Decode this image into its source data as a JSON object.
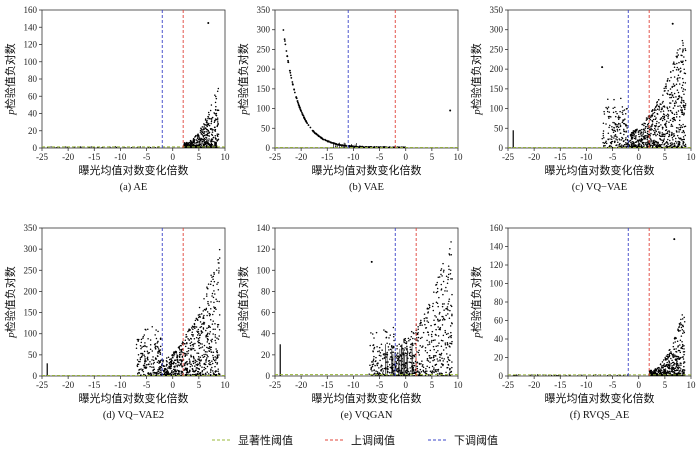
{
  "chart_data": [
    {
      "type": "scatter",
      "title": "",
      "caption": "(a) AE",
      "xlabel": "曝光均值对数变化倍数",
      "ylabel": "p检验值负对数",
      "xlim": [
        -25,
        10
      ],
      "ylim": [
        0,
        160
      ],
      "xticks": [
        -25,
        -20,
        -15,
        -10,
        -5,
        0,
        5,
        10
      ],
      "yticks": [
        0,
        20,
        40,
        60,
        80,
        100,
        120,
        140,
        160
      ],
      "thresholds": {
        "significance_y": 1.3,
        "up_x": 2,
        "down_x": -2
      },
      "shape": "ae",
      "x": [
        6.8
      ],
      "y": [
        145
      ]
    },
    {
      "type": "scatter",
      "title": "",
      "caption": "(b) VAE",
      "xlabel": "曝光均值对数变化倍数",
      "ylabel": "p检验值负对数",
      "xlim": [
        -25,
        10
      ],
      "ylim": [
        0,
        350
      ],
      "xticks": [
        -25,
        -20,
        -15,
        -10,
        -5,
        0,
        5,
        10
      ],
      "yticks": [
        0,
        50,
        100,
        150,
        200,
        250,
        300,
        350
      ],
      "thresholds": {
        "significance_y": 1.3,
        "up_x": -2,
        "down_x": -11
      },
      "shape": "vae",
      "x": [
        8.5
      ],
      "y": [
        95
      ]
    },
    {
      "type": "scatter",
      "title": "",
      "caption": "(c) VQ−VAE",
      "xlabel": "曝光均值对数变化倍数",
      "ylabel": "p检验值负对数",
      "xlim": [
        -25,
        10
      ],
      "ylim": [
        0,
        350
      ],
      "xticks": [
        -25,
        -20,
        -15,
        -10,
        -5,
        0,
        5,
        10
      ],
      "yticks": [
        0,
        50,
        100,
        150,
        200,
        250,
        300,
        350
      ],
      "thresholds": {
        "significance_y": 1.3,
        "up_x": 2,
        "down_x": -2
      },
      "shape": "vq",
      "x": [
        -7,
        6.5
      ],
      "y": [
        205,
        315
      ]
    },
    {
      "type": "scatter",
      "title": "",
      "caption": "(d) VQ−VAE2",
      "xlabel": "曝光均值对数变化倍数",
      "ylabel": "p检验值负对数",
      "xlim": [
        -25,
        10
      ],
      "ylim": [
        0,
        350
      ],
      "xticks": [
        -25,
        -20,
        -15,
        -10,
        -5,
        0,
        5,
        10
      ],
      "yticks": [
        0,
        50,
        100,
        150,
        200,
        250,
        300,
        350
      ],
      "thresholds": {
        "significance_y": 1.3,
        "up_x": 2,
        "down_x": -2
      },
      "shape": "vq2",
      "x": [],
      "y": []
    },
    {
      "type": "scatter",
      "title": "",
      "caption": "(e) VQGAN",
      "xlabel": "曝光均值对数变化倍数",
      "ylabel": "p检验值负对数",
      "xlim": [
        -25,
        10
      ],
      "ylim": [
        0,
        140
      ],
      "xticks": [
        -25,
        -20,
        -15,
        -10,
        -5,
        0,
        5,
        10
      ],
      "yticks": [
        0,
        20,
        40,
        60,
        80,
        100,
        120,
        140
      ],
      "thresholds": {
        "significance_y": 1.3,
        "up_x": 2,
        "down_x": -2
      },
      "shape": "vqgan",
      "x": [
        -6.5
      ],
      "y": [
        108
      ]
    },
    {
      "type": "scatter",
      "title": "",
      "caption": "(f) RVQS_AE",
      "xlabel": "曝光均值对数变化倍数",
      "ylabel": "p检验值负对数",
      "xlim": [
        -25,
        10
      ],
      "ylim": [
        0,
        160
      ],
      "xticks": [
        -25,
        -20,
        -15,
        -10,
        -5,
        0,
        5,
        10
      ],
      "yticks": [
        0,
        20,
        40,
        60,
        80,
        100,
        120,
        140,
        160
      ],
      "thresholds": {
        "significance_y": 1.3,
        "up_x": 2,
        "down_x": -2
      },
      "shape": "ae",
      "x": [
        6.8
      ],
      "y": [
        148
      ]
    }
  ],
  "legend": {
    "placement": "bottom",
    "items": [
      {
        "label": "显著性阈值",
        "color": "#9ab83a"
      },
      {
        "label": "上调阈值",
        "color": "#e0443a"
      },
      {
        "label": "下调阈值",
        "color": "#3a44c8"
      }
    ]
  },
  "colors": {
    "points": "#000000",
    "significance": "#9ab83a",
    "up": "#e0443a",
    "down": "#3a44c8"
  }
}
